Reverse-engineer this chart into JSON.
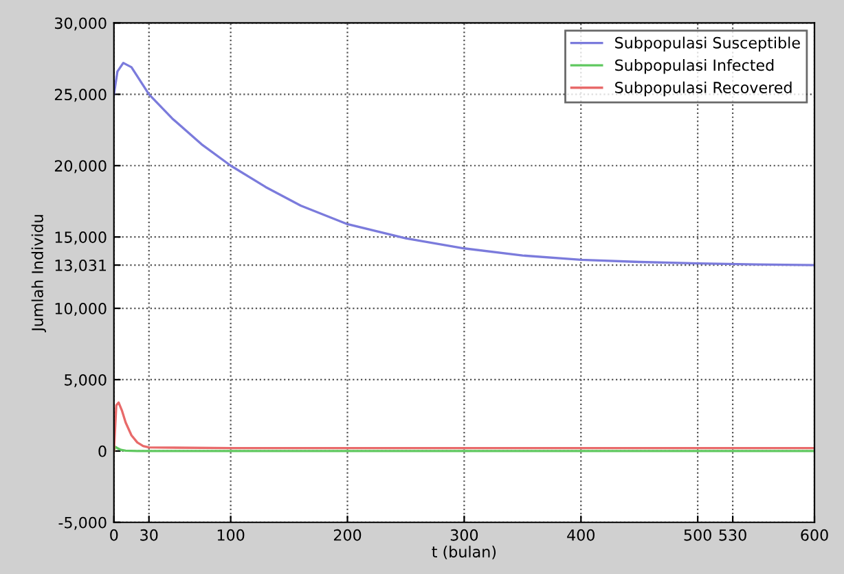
{
  "chart_data": {
    "type": "line",
    "xlabel": "t (bulan)",
    "ylabel": "Jumlah Individu",
    "xlim": [
      0,
      600
    ],
    "ylim": [
      -5000,
      30000
    ],
    "xticks": [
      0,
      30,
      100,
      200,
      300,
      400,
      500,
      530,
      600
    ],
    "yticks": [
      {
        "value": -5000,
        "label": "-5,000"
      },
      0,
      {
        "value": 5000,
        "label": "5,000"
      },
      {
        "value": 10000,
        "label": "10,000"
      },
      {
        "value": 13031,
        "label": "13,031"
      },
      {
        "value": 15000,
        "label": "15,000"
      },
      {
        "value": 20000,
        "label": "20,000"
      },
      {
        "value": 25000,
        "label": "25,000"
      },
      {
        "value": 30000,
        "label": "30,000"
      }
    ],
    "grid": true,
    "legend": "top right",
    "line_style": "solid",
    "series": [
      {
        "name": "Subpopulasi Susceptible",
        "color": "#7b7bdc",
        "x": [
          0,
          3,
          8,
          15,
          30,
          50,
          75,
          100,
          130,
          160,
          200,
          250,
          300,
          350,
          400,
          450,
          500,
          550,
          600
        ],
        "values": [
          25000,
          26600,
          27200,
          26900,
          25000,
          23300,
          21500,
          20000,
          18500,
          17200,
          15900,
          14900,
          14200,
          13700,
          13400,
          13250,
          13150,
          13080,
          13031
        ]
      },
      {
        "name": "Subpopulasi Infected",
        "color": "#5fc85f",
        "x": [
          0,
          1,
          3,
          6,
          10,
          20,
          30,
          100,
          600
        ],
        "values": [
          0,
          300,
          200,
          80,
          20,
          0,
          0,
          0,
          0
        ]
      },
      {
        "name": "Subpopulasi Recovered",
        "color": "#e86a6a",
        "x": [
          0,
          2,
          4,
          7,
          10,
          15,
          20,
          25,
          30,
          100,
          600
        ],
        "values": [
          0,
          3200,
          3400,
          2800,
          2000,
          1100,
          600,
          350,
          250,
          200,
          200
        ]
      }
    ]
  }
}
